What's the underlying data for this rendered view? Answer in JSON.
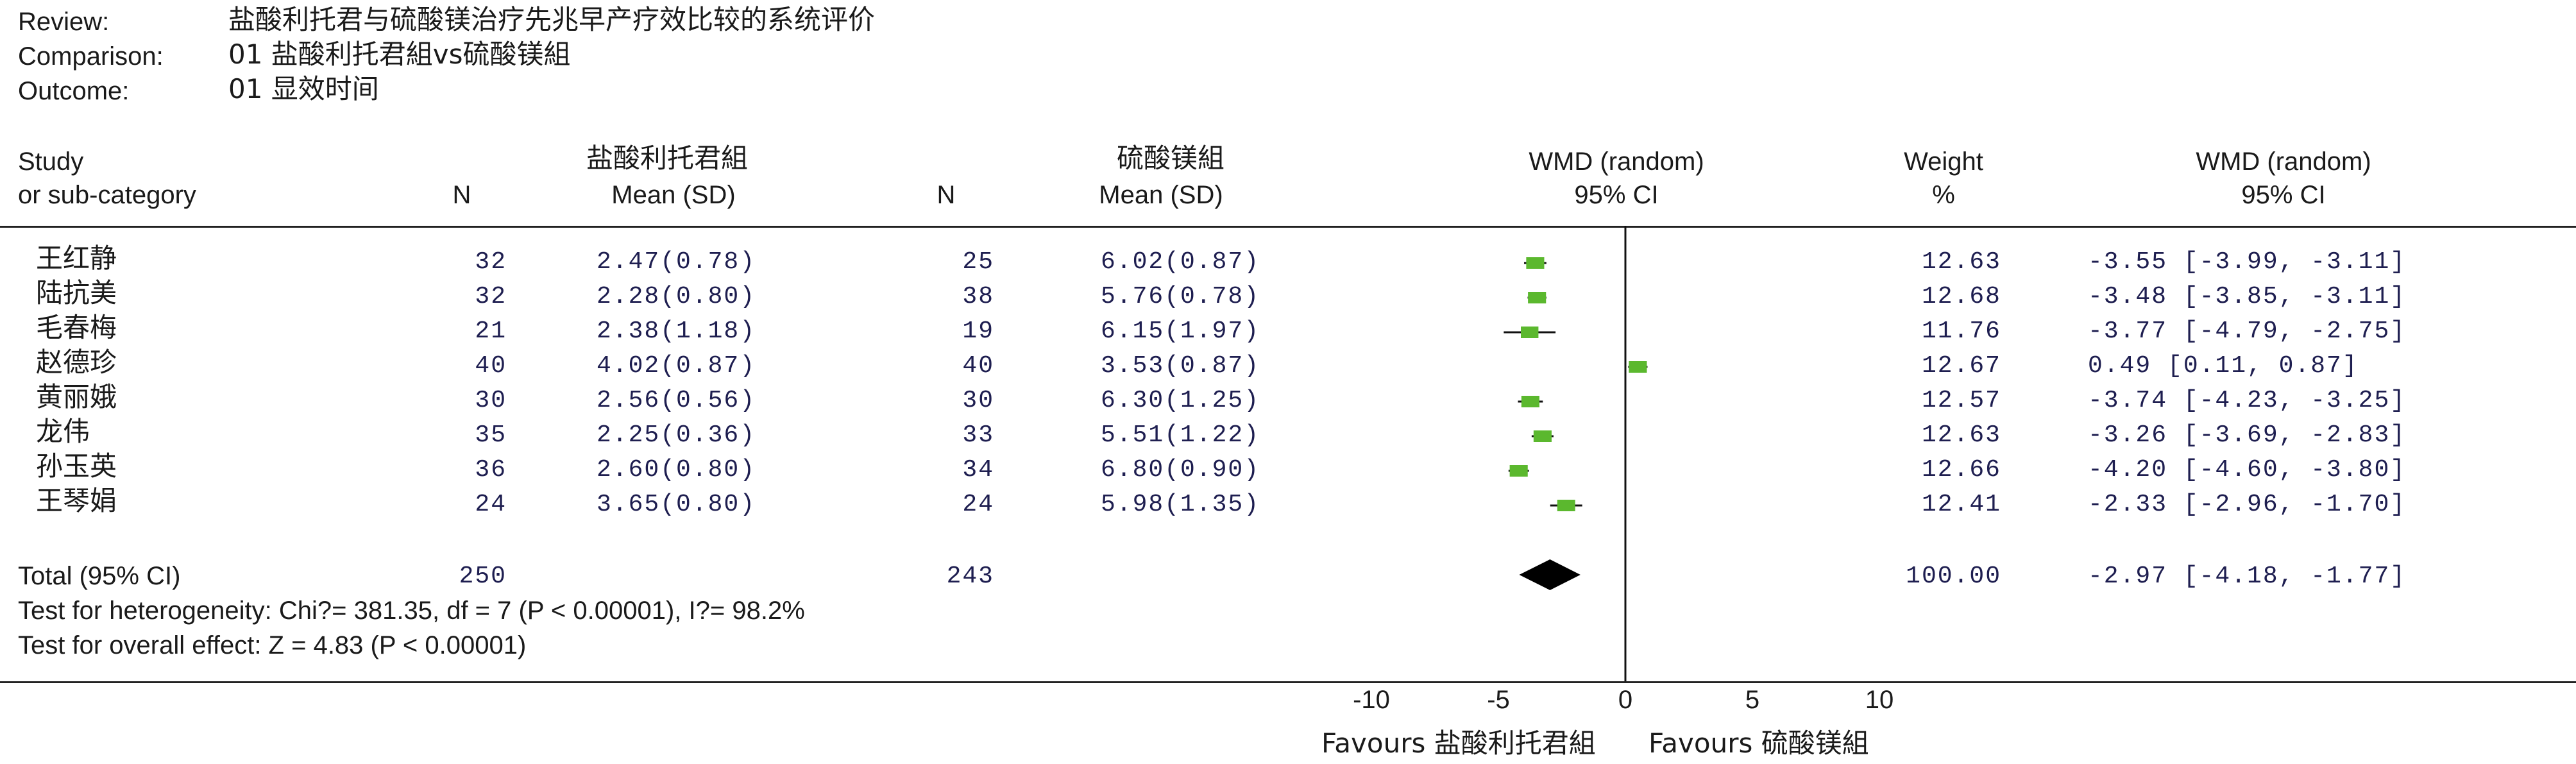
{
  "header": {
    "review_label": "Review:",
    "review_value": "盐酸利托君与硫酸镁治疗先兆早产疗效比较的系统评价",
    "comparison_label": "Comparison:",
    "comparison_value": "01 盐酸利托君組vs硫酸镁組",
    "outcome_label": "Outcome:",
    "outcome_value": "01 显效时间"
  },
  "columns": {
    "study_1": "Study",
    "study_2": "or sub-category",
    "group1": "盐酸利托君組",
    "group2": "硫酸镁組",
    "n": "N",
    "mean_sd": "Mean (SD)",
    "wmd_1": "WMD (random)",
    "wmd_2": "95% CI",
    "weight_1": "Weight",
    "weight_2": "%",
    "wmd_right_1": "WMD (random)",
    "wmd_right_2": "95% CI"
  },
  "rows": [
    {
      "study": "王红静",
      "n1": "32",
      "m1": "2.47(0.78)",
      "n2": "25",
      "m2": "6.02(0.87)",
      "weight": "12.63",
      "ci": "-3.55 [-3.99, -3.11]"
    },
    {
      "study": "陆抗美",
      "n1": "32",
      "m1": "2.28(0.80)",
      "n2": "38",
      "m2": "5.76(0.78)",
      "weight": "12.68",
      "ci": "-3.48 [-3.85, -3.11]"
    },
    {
      "study": "毛春梅",
      "n1": "21",
      "m1": "2.38(1.18)",
      "n2": "19",
      "m2": "6.15(1.97)",
      "weight": "11.76",
      "ci": "-3.77 [-4.79, -2.75]"
    },
    {
      "study": "赵德珍",
      "n1": "40",
      "m1": "4.02(0.87)",
      "n2": "40",
      "m2": "3.53(0.87)",
      "weight": "12.67",
      "ci": "0.49 [0.11, 0.87]"
    },
    {
      "study": "黄丽娥",
      "n1": "30",
      "m1": "2.56(0.56)",
      "n2": "30",
      "m2": "6.30(1.25)",
      "weight": "12.57",
      "ci": "-3.74 [-4.23, -3.25]"
    },
    {
      "study": "龙伟",
      "n1": "35",
      "m1": "2.25(0.36)",
      "n2": "33",
      "m2": "5.51(1.22)",
      "weight": "12.63",
      "ci": "-3.26 [-3.69, -2.83]"
    },
    {
      "study": "孙玉英",
      "n1": "36",
      "m1": "2.60(0.80)",
      "n2": "34",
      "m2": "6.80(0.90)",
      "weight": "12.66",
      "ci": "-4.20 [-4.60, -3.80]"
    },
    {
      "study": "王琴娟",
      "n1": "24",
      "m1": "3.65(0.80)",
      "n2": "24",
      "m2": "5.98(1.35)",
      "weight": "12.41",
      "ci": "-2.33 [-2.96, -1.70]"
    }
  ],
  "total": {
    "label": "Total (95% CI)",
    "n1": "250",
    "n2": "243",
    "weight": "100.00",
    "ci": "-2.97 [-4.18, -1.77]"
  },
  "heterogeneity": "Test for heterogeneity: Chi?= 381.35, df = 7 (P < 0.00001), I?= 98.2%",
  "overall_effect": "Test for overall effect: Z = 4.83 (P < 0.00001)",
  "axis": {
    "ticks": [
      "-10",
      "-5",
      "0",
      "5",
      "10"
    ],
    "favours_left": "Favours 盐酸利托君組",
    "favours_right": "Favours 硫酸镁組"
  },
  "chart_data": {
    "type": "forest",
    "xlim": [
      -10,
      10
    ],
    "xticks": [
      -10,
      -5,
      0,
      5,
      10
    ],
    "marker_color": "#5bb82e",
    "line_color": "#111111",
    "studies": [
      {
        "name": "王红静",
        "estimate": -3.55,
        "lower": -3.99,
        "upper": -3.11,
        "weight": 12.63
      },
      {
        "name": "陆抗美",
        "estimate": -3.48,
        "lower": -3.85,
        "upper": -3.11,
        "weight": 12.68
      },
      {
        "name": "毛春梅",
        "estimate": -3.77,
        "lower": -4.79,
        "upper": -2.75,
        "weight": 11.76
      },
      {
        "name": "赵德珍",
        "estimate": 0.49,
        "lower": 0.11,
        "upper": 0.87,
        "weight": 12.67
      },
      {
        "name": "黄丽娥",
        "estimate": -3.74,
        "lower": -4.23,
        "upper": -3.25,
        "weight": 12.57
      },
      {
        "name": "龙伟",
        "estimate": -3.26,
        "lower": -3.69,
        "upper": -2.83,
        "weight": 12.63
      },
      {
        "name": "孙玉英",
        "estimate": -4.2,
        "lower": -4.6,
        "upper": -3.8,
        "weight": 12.66
      },
      {
        "name": "王琴娟",
        "estimate": -2.33,
        "lower": -2.96,
        "upper": -1.7,
        "weight": 12.41
      }
    ],
    "pooled": {
      "estimate": -2.97,
      "lower": -4.18,
      "upper": -1.77,
      "weight": 100.0
    }
  }
}
